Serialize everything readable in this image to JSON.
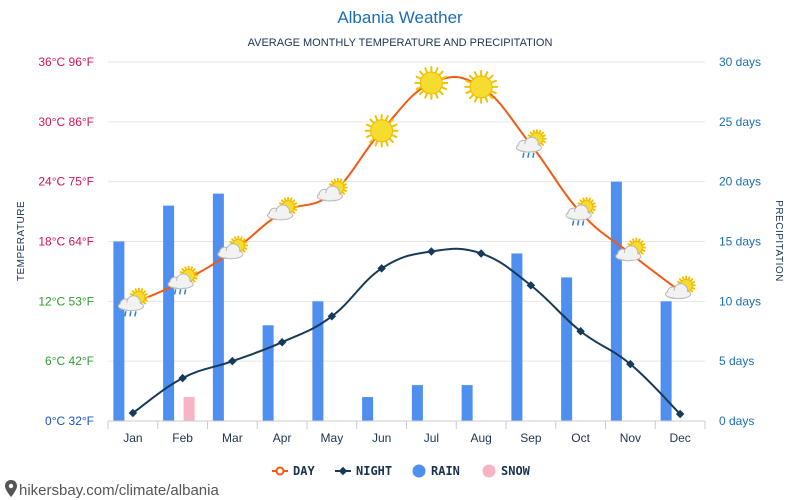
{
  "header": {
    "title": "Albania Weather",
    "subtitle": "AVERAGE MONTHLY TEMPERATURE AND PRECIPITATION"
  },
  "footer": {
    "url": "hikersbay.com/climate/albania"
  },
  "colors": {
    "day": "#f25a12",
    "night": "#163a5a",
    "rain": "#4f8ff0",
    "snow": "#f8b4c4",
    "temp_label": "#d8105a",
    "temp_label_low": "#2e9e2e",
    "temp_label_zero": "#1a50c8",
    "precip_label": "#1a6fb0",
    "grid": "#e6e6e6"
  },
  "chart_data": {
    "type": "line",
    "categories": [
      "Jan",
      "Feb",
      "Mar",
      "Apr",
      "May",
      "Jun",
      "Jul",
      "Aug",
      "Sep",
      "Oct",
      "Nov",
      "Dec"
    ],
    "ylabel": "TEMPERATURE",
    "ylabel_right": "PRECIPITATION",
    "ylim": [
      0,
      36
    ],
    "ylim_right": [
      0,
      30
    ],
    "grid": true,
    "legend_position": "bottom",
    "y_ticks": [
      "0°C 32°F",
      "6°C 42°F",
      "12°C 53°F",
      "18°C 64°F",
      "24°C 75°F",
      "30°C 86°F",
      "36°C 96°F"
    ],
    "y_ticks_right": [
      "0 days",
      "5 days",
      "10 days",
      "15 days",
      "20 days",
      "25 days",
      "30 days"
    ],
    "series": [
      {
        "name": "DAY",
        "type": "line",
        "axis": "left",
        "values": [
          11.8,
          14.0,
          17.0,
          20.9,
          22.8,
          29.1,
          33.9,
          33.5,
          27.7,
          20.9,
          16.8,
          13.0
        ]
      },
      {
        "name": "NIGHT",
        "type": "line",
        "axis": "left",
        "values": [
          0.8,
          4.3,
          6.0,
          7.9,
          10.5,
          15.3,
          17.0,
          16.8,
          13.6,
          9.0,
          5.7,
          0.7
        ]
      },
      {
        "name": "RAIN",
        "type": "bar",
        "axis": "right",
        "values": [
          15,
          18,
          19,
          8,
          10,
          2,
          3,
          3,
          14,
          12,
          20,
          10
        ]
      },
      {
        "name": "SNOW",
        "type": "bar",
        "axis": "right",
        "values": [
          0,
          2,
          0,
          0,
          0,
          0,
          0,
          0,
          0,
          0,
          0,
          0
        ]
      }
    ],
    "weather_icons": [
      "rain-sun-icon",
      "rain-sun-icon",
      "sun-cloud-icon",
      "sun-cloud-icon",
      "sun-cloud-icon",
      "sun-icon",
      "sun-icon",
      "sun-icon",
      "rain-sun-icon",
      "rain-sun-icon",
      "sun-cloud-icon",
      "sun-cloud-icon"
    ]
  }
}
